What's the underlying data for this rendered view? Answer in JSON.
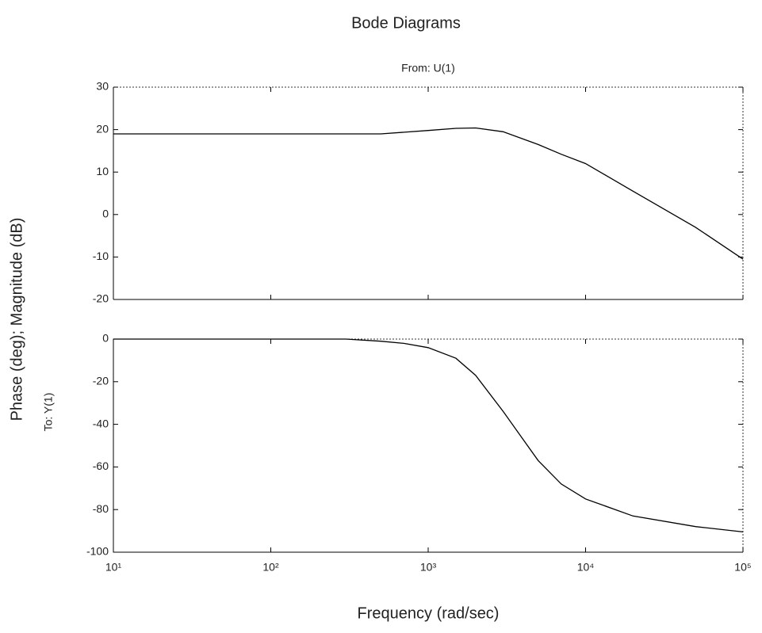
{
  "chart_data": [
    {
      "type": "line",
      "title": "Bode Diagrams",
      "subtitle": "From: U(1)",
      "ylabel": "Phase (deg); Magnitude (dB)",
      "log_x": true,
      "color": "#000000",
      "x": [
        10,
        30,
        100,
        300,
        500,
        1000,
        1500,
        2000,
        3000,
        5000,
        7000,
        10000,
        20000,
        50000,
        100000
      ],
      "values": [
        19,
        19,
        19,
        19,
        19,
        19.8,
        20.3,
        20.4,
        19.5,
        16.5,
        14.2,
        12,
        5.5,
        -3,
        -10.5
      ],
      "xlim": [
        10,
        100000
      ],
      "xticks": [
        10,
        100,
        1000,
        10000,
        100000
      ],
      "ylim": [
        -20,
        30
      ],
      "yticks": [
        30,
        20,
        10,
        0,
        -10,
        -20
      ]
    },
    {
      "type": "line",
      "ylabel": "To: Y(1)",
      "xlabel": "Frequency (rad/sec)",
      "log_x": true,
      "color": "#000000",
      "x": [
        10,
        100,
        300,
        500,
        700,
        1000,
        1500,
        2000,
        3000,
        4000,
        5000,
        7000,
        10000,
        20000,
        50000,
        100000
      ],
      "values": [
        0,
        0,
        0,
        -1,
        -2,
        -4,
        -9,
        -17,
        -34,
        -47,
        -57,
        -68,
        -75,
        -83,
        -88,
        -90.5
      ],
      "xlim": [
        10,
        100000
      ],
      "xticks": [
        {
          "value": 10,
          "label": "10¹"
        },
        {
          "value": 100,
          "label": "10²"
        },
        {
          "value": 1000,
          "label": "10³"
        },
        {
          "value": 10000,
          "label": "10⁴"
        },
        {
          "value": 100000,
          "label": "10⁵"
        }
      ],
      "ylim": [
        -100,
        0
      ],
      "yticks": [
        0,
        -20,
        -40,
        -60,
        -80,
        -100
      ]
    }
  ]
}
